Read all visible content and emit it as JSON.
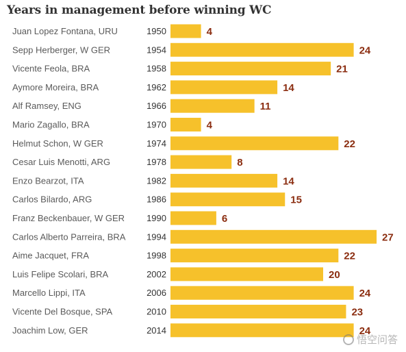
{
  "chart_data": {
    "type": "bar",
    "orientation": "horizontal",
    "title": "Years in management before winning WC",
    "categories": [
      "Juan Lopez Fontana, URU",
      "Sepp Herberger, W GER",
      "Vicente Feola, BRA",
      "Aymore Moreira, BRA",
      "Alf Ramsey, ENG",
      "Mario Zagallo, BRA",
      "Helmut Schon, W GER",
      "Cesar Luis Menotti, ARG",
      "Enzo Bearzot, ITA",
      "Carlos Bilardo, ARG",
      "Franz Beckenbauer, W GER",
      "Carlos Alberto Parreira, BRA",
      "Aime Jacquet, FRA",
      "Luis Felipe Scolari, BRA",
      "Marcello Lippi, ITA",
      "Vicente Del Bosque, SPA",
      "Joachim Low, GER"
    ],
    "years": [
      "1950",
      "1954",
      "1958",
      "1962",
      "1966",
      "1970",
      "1974",
      "1978",
      "1982",
      "1986",
      "1990",
      "1994",
      "1998",
      "2002",
      "2006",
      "2010",
      "2014"
    ],
    "values": [
      4,
      24,
      21,
      14,
      11,
      4,
      22,
      8,
      14,
      15,
      6,
      27,
      22,
      20,
      24,
      23,
      24
    ],
    "xlim": [
      0,
      27
    ],
    "grid": false,
    "legend": "none",
    "bar_color": "#f6c12b",
    "value_label_color": "#8b2d10"
  },
  "watermark": {
    "text": "悟空问答",
    "icon": "chat-bubble-icon"
  }
}
